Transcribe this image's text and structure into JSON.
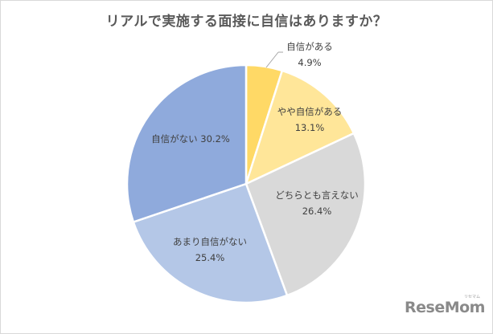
{
  "title": "リアルで実施する面接に自信はありますか？",
  "logo": {
    "text": "ReseMom",
    "sub": "リセマム"
  },
  "labels": {
    "s0": {
      "name": "自信がある",
      "value": "4.9%"
    },
    "s1": {
      "name": "やや自信がある",
      "value": "13.1%"
    },
    "s2": {
      "name": "どちらとも言えない",
      "value": "26.4%"
    },
    "s3": {
      "name": "あまり自信がない",
      "value": "25.4%"
    },
    "s4": {
      "name": "自信がない 30.2%"
    }
  },
  "chart_data": {
    "type": "pie",
    "title": "リアルで実施する面接に自信はありますか？",
    "categories": [
      "自信がある",
      "やや自信がある",
      "どちらとも言えない",
      "あまり自信がない",
      "自信がない"
    ],
    "values": [
      4.9,
      13.1,
      26.4,
      25.4,
      30.2
    ],
    "unit": "%",
    "colors": [
      "#ffd966",
      "#ffe699",
      "#d9d9d9",
      "#b4c7e7",
      "#8faadc"
    ],
    "start_angle": "12 o'clock, clockwise",
    "legend": "none (data labels)"
  }
}
